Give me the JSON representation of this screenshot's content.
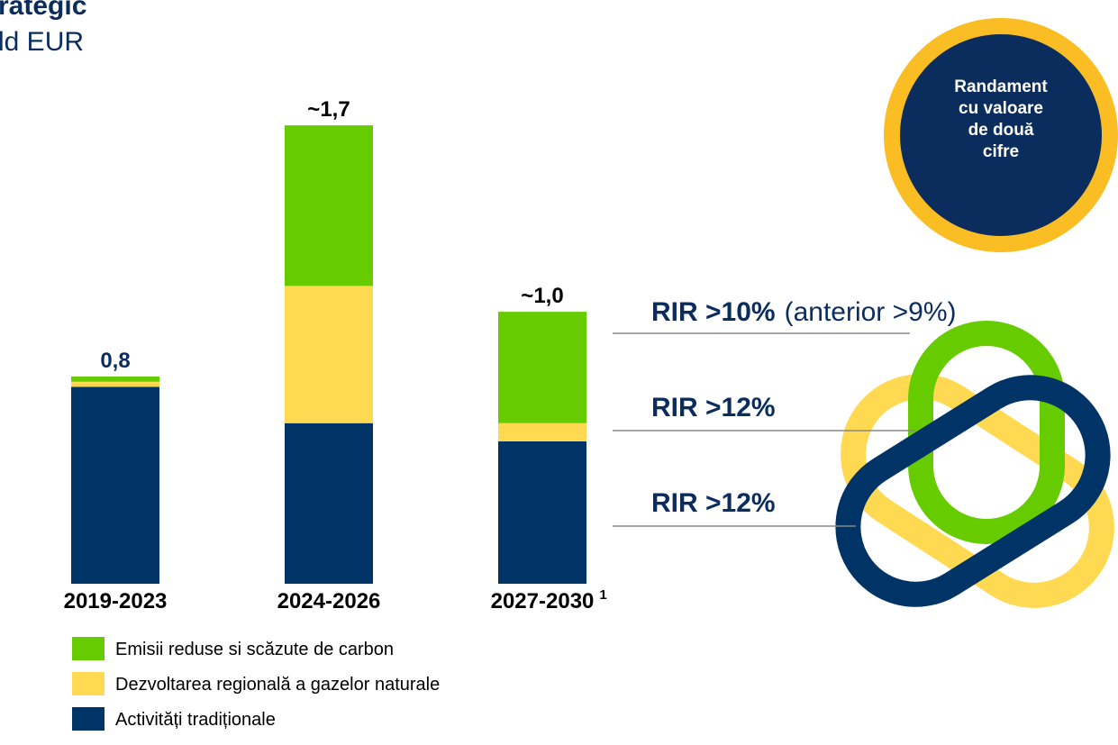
{
  "chart_data": {
    "type": "stacked_bar",
    "title": "rategic",
    "subtitle": "ld EUR",
    "categories": [
      "2019-2023",
      "2024-2026",
      "2027-2030"
    ],
    "category_footnote": "1",
    "total_labels": [
      "0,8",
      "~1,7",
      "~1,0"
    ],
    "series": [
      {
        "name": "Emisii reduse si scăzute de carbon",
        "color": "#66cc00",
        "values": [
          0.02,
          0.62,
          0.43
        ]
      },
      {
        "name": "Dezvoltarea regională a gazelor naturale",
        "color": "#ffd952",
        "values": [
          0.02,
          0.53,
          0.07
        ]
      },
      {
        "name": "Activități tradiționale",
        "color": "#003366",
        "values": [
          0.76,
          0.62,
          0.55
        ]
      }
    ],
    "ylim": [
      0,
      2
    ],
    "badge_lines": [
      "Randament",
      "cu valoare",
      "de două",
      "cifre"
    ],
    "annotations": [
      {
        "bold": "RIR >10%",
        "text": "(anterior >9%)"
      },
      {
        "bold": "RIR >12%"
      },
      {
        "bold": "RIR >12%"
      }
    ]
  }
}
